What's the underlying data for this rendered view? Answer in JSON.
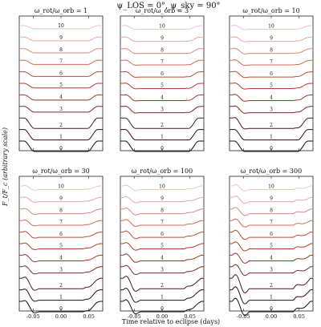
{
  "figure": {
    "title": "ψ_LOS = 0°, ψ_sky = 90°",
    "xlabel": "Time relative to eclipse (days)",
    "ylabel": "F_t/F_c (arbitrary scale)"
  },
  "chart_data": [
    {
      "type": "line",
      "title": "ω_rot/ω_orb = 1",
      "ratio": 1,
      "xlim": [
        -0.075,
        0.075
      ],
      "xticks": [
        "-0.05",
        "0.00",
        "0.05"
      ],
      "curve_labels": [
        "0",
        "1",
        "2",
        "3",
        "4",
        "5",
        "6",
        "7",
        "8",
        "9",
        "10"
      ],
      "series_shape": {
        "depth": [
          1.0,
          1.0,
          1.0,
          0.55,
          0.5,
          0.45,
          0.45,
          0.4,
          0.4,
          0.35,
          0.3
        ],
        "wiggle": [
          0,
          0,
          0,
          0,
          0,
          0,
          0,
          0,
          0,
          0,
          0
        ]
      }
    },
    {
      "type": "line",
      "title": "ω_rot/ω_orb = 3",
      "ratio": 3,
      "xlim": [
        -0.075,
        0.075
      ],
      "xticks": [
        "-0.05",
        "0.00",
        "0.05"
      ],
      "curve_labels": [
        "0",
        "1",
        "2",
        "3",
        "4",
        "5",
        "6",
        "7",
        "8",
        "9",
        "10"
      ],
      "series_shape": {
        "depth": [
          1.0,
          1.0,
          1.0,
          0.6,
          0.55,
          0.5,
          0.5,
          0.45,
          0.45,
          0.4,
          0.35
        ],
        "wiggle": [
          0,
          0,
          0,
          0.05,
          0.05,
          0.05,
          0.05,
          0.05,
          0.05,
          0.05,
          0.05
        ]
      }
    },
    {
      "type": "line",
      "title": "ω_rot/ω_orb = 10",
      "ratio": 10,
      "xlim": [
        -0.075,
        0.075
      ],
      "xticks": [
        "-0.05",
        "0.00",
        "0.05"
      ],
      "curve_labels": [
        "0",
        "1",
        "2",
        "3",
        "4",
        "5",
        "6",
        "7",
        "8",
        "9",
        "10"
      ],
      "series_shape": {
        "depth": [
          1.0,
          1.0,
          1.0,
          0.6,
          0.55,
          0.5,
          0.5,
          0.45,
          0.45,
          0.4,
          0.35
        ],
        "wiggle": [
          0,
          0,
          0.05,
          0.1,
          0.1,
          0.1,
          0.1,
          0.1,
          0.1,
          0.1,
          0.1
        ]
      }
    },
    {
      "type": "line",
      "title": "ω_rot/ω_orb = 30",
      "ratio": 30,
      "xlim": [
        -0.075,
        0.075
      ],
      "xticks": [
        "-0.05",
        "0.00",
        "0.05"
      ],
      "curve_labels": [
        "0",
        "1",
        "2",
        "3",
        "4",
        "5",
        "6",
        "7",
        "8",
        "9",
        "10"
      ],
      "series_shape": {
        "depth": [
          1.0,
          1.0,
          1.0,
          0.6,
          0.55,
          0.5,
          0.5,
          0.45,
          0.45,
          0.4,
          0.35
        ],
        "wiggle": [
          0.1,
          0.1,
          0.15,
          0.15,
          0.15,
          0.15,
          0.15,
          0.15,
          0.15,
          0.15,
          0.15
        ]
      }
    },
    {
      "type": "line",
      "title": "ω_rot/ω_orb = 100",
      "ratio": 100,
      "xlim": [
        -0.075,
        0.075
      ],
      "xticks": [
        "-0.05",
        "0.00",
        "0.05"
      ],
      "curve_labels": [
        "0",
        "1",
        "2",
        "3",
        "4",
        "5",
        "6",
        "7",
        "8",
        "9",
        "10"
      ],
      "series_shape": {
        "depth": [
          1.0,
          1.0,
          1.0,
          0.6,
          0.55,
          0.5,
          0.5,
          0.45,
          0.45,
          0.4,
          0.35
        ],
        "wiggle": [
          0.2,
          0.2,
          0.25,
          0.25,
          0.25,
          0.25,
          0.25,
          0.25,
          0.25,
          0.25,
          0.25
        ]
      }
    },
    {
      "type": "line",
      "title": "ω_rot/ω_orb = 300",
      "ratio": 300,
      "xlim": [
        -0.075,
        0.075
      ],
      "xticks": [
        "-0.05",
        "0.00",
        "0.05"
      ],
      "curve_labels": [
        "0",
        "1",
        "2",
        "3",
        "4",
        "5",
        "6",
        "7",
        "8",
        "9",
        "10"
      ],
      "series_shape": {
        "depth": [
          1.0,
          1.0,
          1.0,
          0.6,
          0.55,
          0.5,
          0.5,
          0.45,
          0.45,
          0.4,
          0.35
        ],
        "wiggle": [
          0.35,
          0.35,
          0.4,
          0.4,
          0.4,
          0.4,
          0.4,
          0.4,
          0.4,
          0.4,
          0.4
        ]
      }
    }
  ],
  "colors": {
    "curves": [
      "#111111",
      "#2a0d0d",
      "#4a1818",
      "#7a2a22",
      "#9a3528",
      "#b03d2c",
      "#c24a35",
      "#cf6a58",
      "#d9897c",
      "#e3a9a0",
      "#ecc6c0"
    ],
    "axis": "#222222"
  }
}
